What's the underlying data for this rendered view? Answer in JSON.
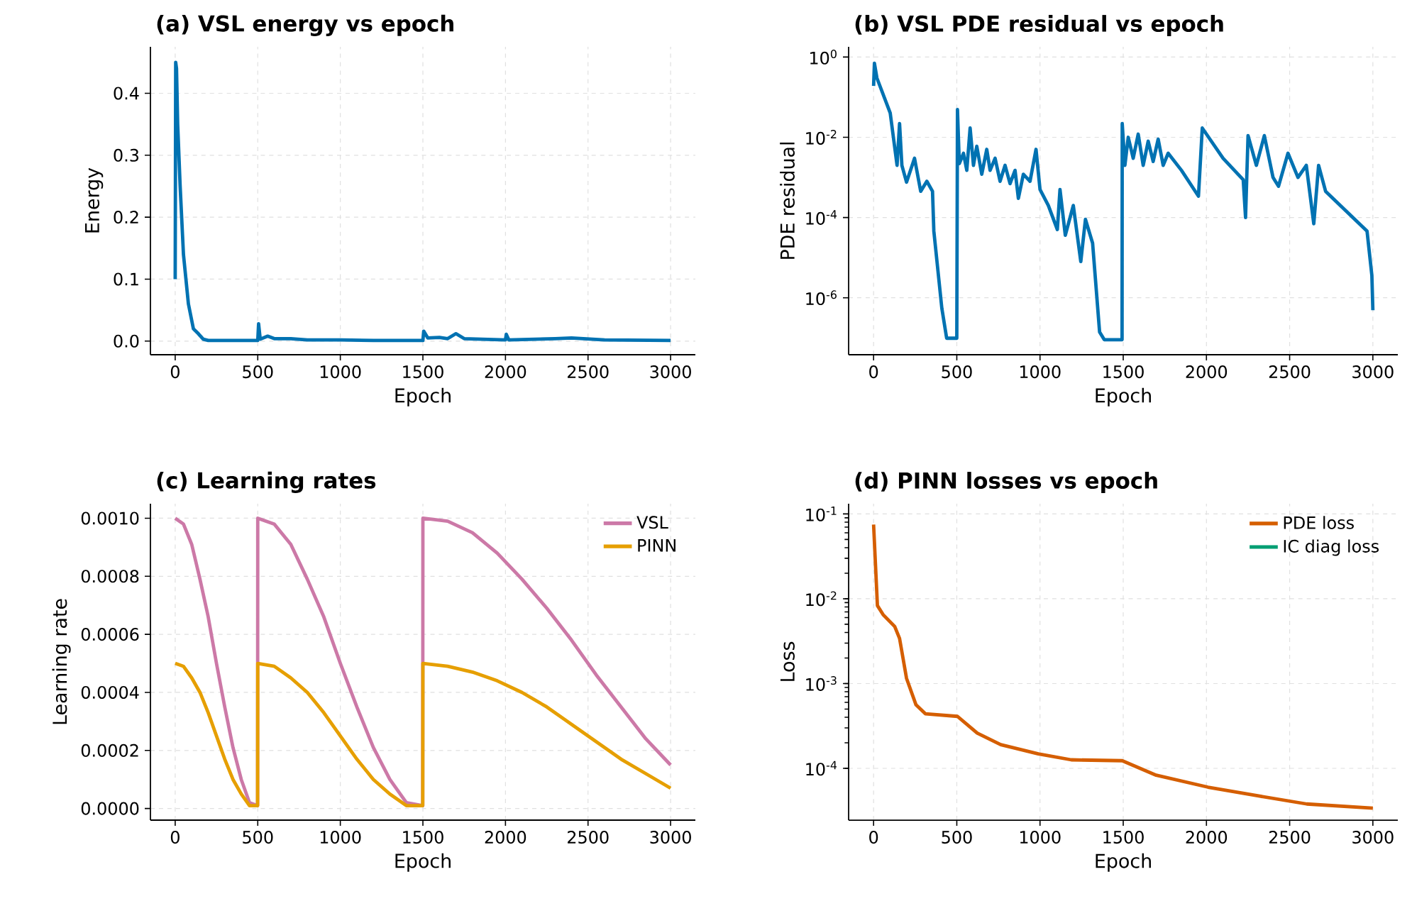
{
  "chart_data": [
    {
      "type": "line",
      "title": "(a) VSL energy vs epoch",
      "xlabel": "Epoch",
      "ylabel": "Energy",
      "grid": true,
      "xlim": [
        -150,
        3150
      ],
      "ylim": [
        -0.022,
        0.475
      ],
      "xticks": [
        0,
        500,
        1000,
        1500,
        2000,
        2500,
        3000
      ],
      "yticks": [
        {
          "value": 0,
          "label": "0.0"
        },
        {
          "value": 0.1,
          "label": "0.1"
        },
        {
          "value": 0.2,
          "label": "0.2"
        },
        {
          "value": 0.3,
          "label": "0.3"
        },
        {
          "value": 0.4,
          "label": "0.4"
        }
      ],
      "series": [
        {
          "color": "#0072b2",
          "x": [
            0,
            3,
            8,
            15,
            30,
            50,
            80,
            110,
            140,
            170,
            200,
            300,
            500,
            505,
            515,
            560,
            600,
            700,
            800,
            1000,
            1200,
            1500,
            1505,
            1530,
            1600,
            1650,
            1700,
            1750,
            2000,
            2005,
            2020,
            2300,
            2400,
            2600,
            3000
          ],
          "values": [
            0.1,
            0.45,
            0.44,
            0.35,
            0.25,
            0.14,
            0.06,
            0.02,
            0.012,
            0.003,
            0.001,
            0.001,
            0.001,
            0.028,
            0.003,
            0.008,
            0.004,
            0.004,
            0.002,
            0.002,
            0.001,
            0.001,
            0.016,
            0.005,
            0.006,
            0.004,
            0.012,
            0.004,
            0.002,
            0.011,
            0.002,
            0.004,
            0.005,
            0.002,
            0.001
          ]
        }
      ]
    },
    {
      "type": "line",
      "title": "(b) VSL PDE residual vs epoch",
      "xlabel": "Epoch",
      "ylabel": "PDE residual",
      "grid": true,
      "log": "y",
      "xlim": [
        -150,
        3150
      ],
      "ylim": [
        3.8e-08,
        1.8
      ],
      "xticks": [
        0,
        500,
        1000,
        1500,
        2000,
        2500,
        3000
      ],
      "yticks": [
        {
          "value": 1e-06,
          "label": "10$^{-6}$"
        },
        {
          "value": 0.0001,
          "label": "10$^{-4}$"
        },
        {
          "value": 0.01,
          "label": "10$^{-2}$"
        },
        {
          "value": 1,
          "label": "10$^{0}$"
        }
      ],
      "series": [
        {
          "color": "#0072b2",
          "x": [
            0,
            5,
            20,
            100,
            141,
            156,
            170,
            198,
            246,
            283,
            320,
            354,
            362,
            410,
            439,
            500,
            504,
            515,
            540,
            560,
            580,
            600,
            620,
            650,
            680,
            700,
            730,
            760,
            790,
            820,
            850,
            870,
            900,
            940,
            976,
            1000,
            1050,
            1104,
            1120,
            1152,
            1200,
            1245,
            1273,
            1316,
            1358,
            1386,
            1493,
            1494,
            1510,
            1530,
            1560,
            1590,
            1620,
            1650,
            1680,
            1710,
            1740,
            1770,
            1850,
            1952,
            1975,
            2100,
            2221,
            2235,
            2250,
            2300,
            2348,
            2400,
            2433,
            2490,
            2550,
            2600,
            2645,
            2674,
            2716,
            2965,
            2994,
            3000
          ],
          "values": [
            0.19,
            0.7,
            0.3,
            0.04,
            0.002,
            0.022,
            0.002,
            0.00076,
            0.003,
            0.00045,
            0.0008,
            0.00045,
            4.6e-05,
            5.5e-07,
            9.8e-08,
            9.8e-08,
            0.049,
            0.0022,
            0.004,
            0.0015,
            0.017,
            0.002,
            0.006,
            0.0012,
            0.005,
            0.0015,
            0.003,
            0.0008,
            0.002,
            0.0007,
            0.0015,
            0.0003,
            0.0012,
            0.0008,
            0.005,
            0.0005,
            0.0002,
            5e-05,
            0.0005,
            3.6e-05,
            0.0002,
            8e-06,
            9e-05,
            2.3e-05,
            1.4e-07,
            9e-08,
            9e-08,
            0.022,
            0.002,
            0.01,
            0.003,
            0.012,
            0.002,
            0.008,
            0.0025,
            0.009,
            0.002,
            0.004,
            0.0015,
            0.00034,
            0.017,
            0.003,
            0.00087,
            0.0001,
            0.011,
            0.002,
            0.011,
            0.001,
            0.0006,
            0.004,
            0.001,
            0.002,
            7e-05,
            0.002,
            0.00045,
            4.6e-05,
            3.6e-06,
            4.9e-07
          ]
        }
      ]
    },
    {
      "type": "line",
      "title": "(c) Learning rates",
      "xlabel": "Epoch",
      "ylabel": "Learning rate",
      "grid": true,
      "legend": "top right",
      "xlim": [
        -150,
        3150
      ],
      "ylim": [
        -4e-05,
        0.00105
      ],
      "xticks": [
        0,
        500,
        1000,
        1500,
        2000,
        2500,
        3000
      ],
      "yticks": [
        {
          "value": 0,
          "label": "0.0000"
        },
        {
          "value": 0.0002,
          "label": "0.0002"
        },
        {
          "value": 0.0004,
          "label": "0.0004"
        },
        {
          "value": 0.0006,
          "label": "0.0006"
        },
        {
          "value": 0.0008,
          "label": "0.0008"
        },
        {
          "value": 0.001,
          "label": "0.0010"
        }
      ],
      "series": [
        {
          "name": "VSL",
          "color": "#cc79a7",
          "x": [
            0,
            50,
            100,
            150,
            200,
            250,
            300,
            350,
            400,
            450,
            499,
            500,
            600,
            700,
            800,
            900,
            1000,
            1100,
            1200,
            1300,
            1400,
            1499,
            1500,
            1650,
            1800,
            1950,
            2100,
            2250,
            2400,
            2550,
            2700,
            2850,
            3000
          ],
          "values": [
            0.001,
            0.00098,
            0.00091,
            0.00079,
            0.00066,
            0.0005,
            0.00035,
            0.00021,
            0.0001,
            2e-05,
            1e-05,
            0.001,
            0.00098,
            0.00091,
            0.00079,
            0.00066,
            0.0005,
            0.00035,
            0.00021,
            0.0001,
            2e-05,
            1e-05,
            0.001,
            0.00099,
            0.00095,
            0.00088,
            0.00079,
            0.00069,
            0.00058,
            0.00046,
            0.00035,
            0.00024,
            0.00015
          ]
        },
        {
          "name": "PINN",
          "color": "#e69f00",
          "x": [
            0,
            50,
            100,
            150,
            200,
            250,
            300,
            350,
            400,
            450,
            499,
            500,
            600,
            700,
            800,
            900,
            1000,
            1100,
            1200,
            1300,
            1400,
            1499,
            1500,
            1650,
            1800,
            1950,
            2100,
            2250,
            2400,
            2550,
            2700,
            2850,
            3000
          ],
          "values": [
            0.0005,
            0.00049,
            0.00045,
            0.0004,
            0.00033,
            0.00025,
            0.00017,
            0.0001,
            5e-05,
            1e-05,
            1e-05,
            0.0005,
            0.00049,
            0.00045,
            0.0004,
            0.00033,
            0.00025,
            0.00017,
            0.0001,
            5e-05,
            1e-05,
            1e-05,
            0.0005,
            0.00049,
            0.00047,
            0.00044,
            0.0004,
            0.00035,
            0.00029,
            0.00023,
            0.00017,
            0.00012,
            7e-05
          ]
        }
      ]
    },
    {
      "type": "line",
      "title": "(d) PINN losses vs epoch",
      "xlabel": "Epoch",
      "ylabel": "Loss",
      "grid": true,
      "log": "y",
      "legend": "top right",
      "xlim": [
        -150,
        3150
      ],
      "ylim": [
        2.45e-05,
        0.132
      ],
      "xticks": [
        0,
        500,
        1000,
        1500,
        2000,
        2500,
        3000
      ],
      "yticks": [
        {
          "value": 0.0001,
          "label": "10$^{-4}$"
        },
        {
          "value": 0.001,
          "label": "10$^{-3}$"
        },
        {
          "value": 0.01,
          "label": "10$^{-2}$"
        },
        {
          "value": 0.1,
          "label": "10$^{-1}$"
        }
      ],
      "series": [
        {
          "name": "PDE loss",
          "color": "#d55e00",
          "x": [
            0,
            23,
            57,
            127,
            156,
            198,
            255,
            311,
            504,
            623,
            764,
            990,
            1188,
            1494,
            1698,
            2009,
            2320,
            2603,
            3000
          ],
          "values": [
            0.075,
            0.0083,
            0.0065,
            0.0047,
            0.0034,
            0.00115,
            0.00056,
            0.00044,
            0.00041,
            0.00026,
            0.00019,
            0.000148,
            0.000126,
            0.000123,
            8.3e-05,
            6e-05,
            4.7e-05,
            3.8e-05,
            3.4e-05
          ]
        },
        {
          "name": "IC diag loss",
          "color": "#009e73"
        }
      ]
    }
  ]
}
